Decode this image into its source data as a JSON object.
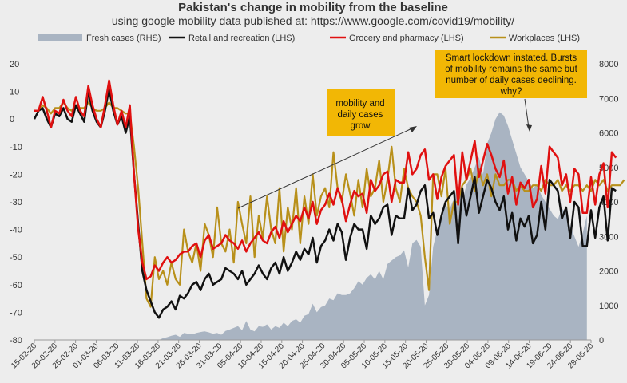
{
  "chart_data": {
    "type": "line",
    "title": "Pakistan's change in mobility from the baseline",
    "subtitle": "using google mobility data published at: https://www.google.com/covid19/mobility/",
    "lhs_ylim": [
      -80,
      20
    ],
    "lhs_ticks": [
      "20",
      "10",
      "0",
      "-10",
      "-20",
      "-30",
      "-40",
      "-50",
      "-60",
      "-70",
      "-80"
    ],
    "rhs_ylim": [
      0,
      8000
    ],
    "rhs_ticks": [
      "8000",
      "7000",
      "6000",
      "5000",
      "4000",
      "3000",
      "2000",
      "1000",
      "0"
    ],
    "x_tick_labels": [
      "15-02-20",
      "20-02-20",
      "25-02-20",
      "01-03-20",
      "06-03-20",
      "11-03-20",
      "16-03-20",
      "21-03-20",
      "26-03-20",
      "31-03-20",
      "05-04-20",
      "10-04-20",
      "15-04-20",
      "20-04-20",
      "25-04-20",
      "30-04-20",
      "05-05-20",
      "10-05-20",
      "15-05-20",
      "20-05-20",
      "25-05-20",
      "30-05-20",
      "04-06-20",
      "09-06-20",
      "14-06-20",
      "19-06-20",
      "24-06-20",
      "29-06-20"
    ],
    "legend": [
      "Fresh cases (RHS)",
      "Retail and recreation (LHS)",
      "Grocery and pharmacy (LHS)",
      "Workplaces (LHS)"
    ],
    "colors": {
      "fresh_cases": "#a9b4c2",
      "retail": "#111111",
      "grocery": "#e01010",
      "workplaces": "#b8901a",
      "background": "#ededed",
      "callout": "#f2b705"
    },
    "fresh_cases": [
      0,
      0,
      0,
      0,
      0,
      0,
      0,
      0,
      0,
      0,
      0,
      0,
      0,
      0,
      0,
      0,
      0,
      0,
      0,
      0,
      0,
      0,
      0,
      0,
      0,
      0,
      0,
      0,
      0,
      0,
      0,
      50,
      80,
      120,
      150,
      90,
      200,
      180,
      160,
      200,
      230,
      250,
      220,
      180,
      200,
      150,
      260,
      300,
      350,
      400,
      280,
      550,
      300,
      250,
      400,
      380,
      450,
      300,
      400,
      350,
      500,
      400,
      550,
      600,
      500,
      700,
      750,
      1050,
      800,
      950,
      1000,
      1200,
      1150,
      1350,
      1300,
      1300,
      1350,
      1500,
      1700,
      1600,
      1800,
      1900,
      1750,
      2000,
      1750,
      2200,
      2300,
      2400,
      2450,
      2600,
      2100,
      2800,
      2900,
      2700,
      1000,
      1300,
      2700,
      3200,
      3600,
      3900,
      3800,
      4100,
      4500,
      4000,
      4500,
      4700,
      5000,
      5300,
      4800,
      5700,
      6000,
      6400,
      6600,
      6500,
      6200,
      5800,
      5400,
      5000,
      4800,
      4600,
      4400,
      4500,
      4200,
      4000,
      3800,
      3600,
      3500,
      3800,
      3700,
      3300,
      3000,
      2700,
      3100,
      3600
    ],
    "retail": [
      0,
      3,
      4,
      0,
      -3,
      2,
      1,
      4,
      0,
      -1,
      5,
      2,
      -1,
      10,
      3,
      -1,
      -3,
      3,
      11,
      3,
      -2,
      1,
      -5,
      1,
      -20,
      -38,
      -55,
      -62,
      -66,
      -70,
      -72,
      -69,
      -68,
      -66,
      -69,
      -64,
      -65,
      -63,
      -60,
      -59,
      -62,
      -58,
      -56,
      -60,
      -59,
      -58,
      -54,
      -55,
      -56,
      -58,
      -55,
      -60,
      -58,
      -56,
      -53,
      -56,
      -58,
      -54,
      -52,
      -56,
      -50,
      -55,
      -52,
      -48,
      -51,
      -47,
      -49,
      -43,
      -52,
      -46,
      -44,
      -40,
      -44,
      -38,
      -41,
      -51,
      -43,
      -38,
      -40,
      -40,
      -47,
      -35,
      -38,
      -36,
      -32,
      -31,
      -42,
      -35,
      -36,
      -36,
      -25,
      -33,
      -31,
      -26,
      -24,
      -36,
      -34,
      -42,
      -35,
      -30,
      -28,
      -26,
      -45,
      -25,
      -35,
      -28,
      -21,
      -34,
      -28,
      -22,
      -25,
      -30,
      -33,
      -28,
      -40,
      -34,
      -44,
      -36,
      -39,
      -35,
      -45,
      -42,
      -30,
      -40,
      -22,
      -24,
      -26,
      -36,
      -32,
      -43,
      -30,
      -32,
      -46,
      -46,
      -33,
      -43,
      -32,
      -28,
      -44,
      -25,
      -26
    ],
    "grocery": [
      3,
      3,
      8,
      3,
      -3,
      3,
      2,
      7,
      3,
      1,
      8,
      3,
      1,
      12,
      5,
      0,
      -3,
      5,
      14,
      5,
      -2,
      3,
      -3,
      5,
      -20,
      -40,
      -52,
      -58,
      -57,
      -53,
      -55,
      -52,
      -50,
      -52,
      -51,
      -49,
      -48,
      -48,
      -46,
      -45,
      -50,
      -44,
      -42,
      -47,
      -46,
      -45,
      -42,
      -44,
      -45,
      -47,
      -44,
      -48,
      -45,
      -43,
      -41,
      -44,
      -45,
      -41,
      -39,
      -43,
      -37,
      -41,
      -38,
      -35,
      -37,
      -32,
      -36,
      -30,
      -38,
      -33,
      -31,
      -27,
      -31,
      -25,
      -29,
      -37,
      -31,
      -26,
      -28,
      -27,
      -34,
      -22,
      -26,
      -24,
      -20,
      -19,
      -30,
      -22,
      -23,
      -23,
      -12,
      -20,
      -18,
      -13,
      -11,
      -22,
      -20,
      -29,
      -21,
      -17,
      -15,
      -13,
      -31,
      -12,
      -22,
      -15,
      -8,
      -21,
      -15,
      -9,
      -13,
      -18,
      -21,
      -15,
      -27,
      -21,
      -31,
      -23,
      -25,
      -22,
      -32,
      -29,
      -17,
      -27,
      -10,
      -12,
      -14,
      -24,
      -20,
      -30,
      -18,
      -20,
      -34,
      -34,
      -21,
      -31,
      -20,
      -16,
      -32,
      -12,
      -14
    ],
    "workplaces": [
      3,
      3,
      5,
      4,
      2,
      4,
      4,
      6,
      4,
      3,
      5,
      4,
      4,
      6,
      4,
      3,
      3,
      4,
      6,
      4,
      4,
      3,
      2,
      2,
      -10,
      -25,
      -45,
      -65,
      -68,
      -50,
      -58,
      -55,
      -60,
      -52,
      -58,
      -60,
      -40,
      -48,
      -52,
      -45,
      -55,
      -38,
      -42,
      -50,
      -32,
      -45,
      -48,
      -40,
      -52,
      -30,
      -38,
      -45,
      -28,
      -50,
      -35,
      -43,
      -28,
      -40,
      -45,
      -25,
      -48,
      -32,
      -40,
      -25,
      -45,
      -28,
      -38,
      -20,
      -35,
      -28,
      -25,
      -32,
      -12,
      -25,
      -30,
      -20,
      -27,
      -35,
      -22,
      -32,
      -18,
      -28,
      -25,
      -15,
      -30,
      -22,
      -10,
      -25,
      -30,
      -18,
      -25,
      -28,
      -30,
      -35,
      -50,
      -62,
      -20,
      -20,
      -28,
      -18,
      -38,
      -30,
      -30,
      -24,
      -22,
      -18,
      -26,
      -18,
      -24,
      -20,
      -28,
      -20,
      -24,
      -24,
      -22,
      -22,
      -26,
      -24,
      -26,
      -26,
      -24,
      -24,
      -26,
      -22,
      -24,
      -24,
      -22,
      -26,
      -24,
      -26,
      -24,
      -24,
      -26,
      -24,
      -26,
      -22,
      -24,
      -22,
      -26,
      -24,
      -24,
      -24,
      -22
    ],
    "annotations": [
      {
        "text_lines": [
          "mobility and",
          "daily cases",
          "grow"
        ]
      },
      {
        "text_lines": [
          "Smart lockdown instated. Bursts",
          "of mobility remains the same but",
          "number of daily cases declining.",
          "why?"
        ]
      }
    ]
  }
}
